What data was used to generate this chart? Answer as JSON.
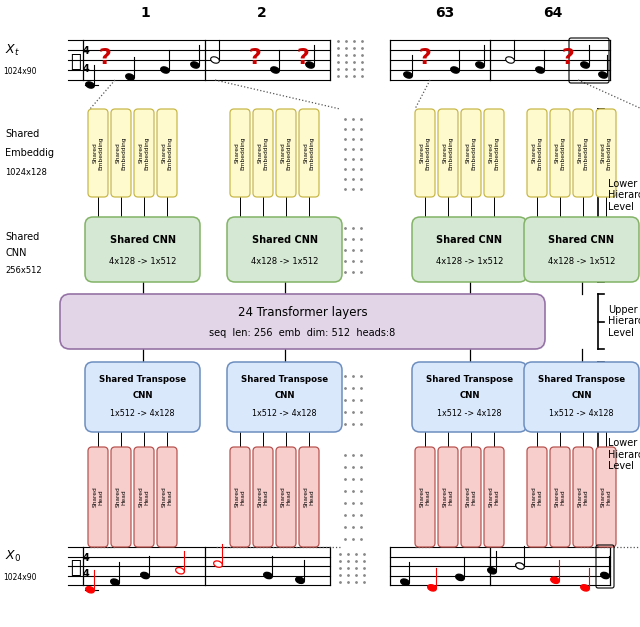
{
  "fig_width": 6.4,
  "fig_height": 6.27,
  "dpi": 100,
  "bg_color": "#ffffff",
  "emb_color": "#fffacd",
  "emb_border": "#c8b84a",
  "cnn_color": "#d5e8d4",
  "cnn_border": "#82b366",
  "transformer_color": "#e1d5e7",
  "transformer_border": "#9673a6",
  "tcnn_color": "#dae8fc",
  "tcnn_border": "#6c8ebf",
  "head_color": "#f8cecc",
  "head_border": "#b85450",
  "question_color": "#cc0000",
  "col_labels": [
    "1",
    "2",
    "63",
    "64"
  ],
  "transformer_text1": "24 Transformer layers",
  "transformer_text2": "seq  len: 256  emb  dim: 512  heads:8",
  "emb_text": "Shared\nEmbedding",
  "head_text": "Shared\nHead"
}
